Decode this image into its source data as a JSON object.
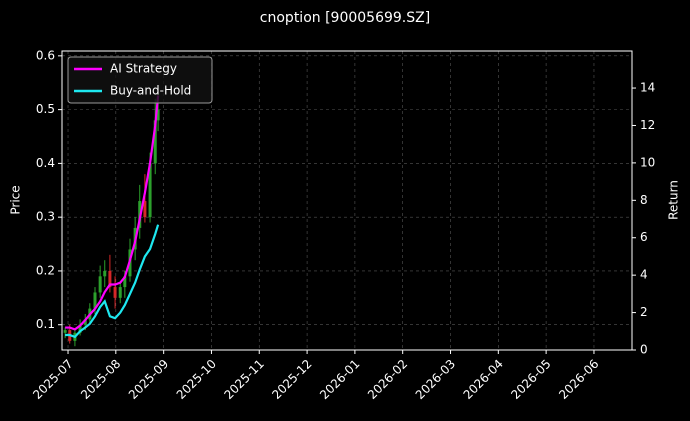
{
  "chart_data": {
    "type": "candlestick",
    "title": "cnoption [90005699.SZ]",
    "ylabel": "Price",
    "y2label": "Return",
    "x": [
      2025.495,
      2025.503,
      2025.512,
      2025.521,
      2025.53,
      2025.538,
      2025.547,
      2025.556,
      2025.564,
      2025.573,
      2025.582,
      2025.591,
      2025.599,
      2025.608,
      2025.617,
      2025.625,
      2025.634,
      2025.643,
      2025.652,
      2025.657
    ],
    "ohlc": {
      "up_color": "#2ca02c",
      "down_color": "#d62728",
      "open": [
        0.085,
        0.09,
        0.07,
        0.085,
        0.1,
        0.11,
        0.13,
        0.16,
        0.19,
        0.2,
        0.17,
        0.15,
        0.17,
        0.19,
        0.24,
        0.28,
        0.33,
        0.3,
        0.4,
        0.48
      ],
      "high": [
        0.095,
        0.1,
        0.09,
        0.11,
        0.12,
        0.14,
        0.17,
        0.21,
        0.22,
        0.23,
        0.19,
        0.18,
        0.2,
        0.26,
        0.3,
        0.36,
        0.38,
        0.42,
        0.52,
        0.53
      ],
      "low": [
        0.075,
        0.065,
        0.06,
        0.08,
        0.09,
        0.1,
        0.12,
        0.15,
        0.17,
        0.16,
        0.13,
        0.14,
        0.15,
        0.18,
        0.22,
        0.26,
        0.29,
        0.29,
        0.38,
        0.46
      ],
      "close": [
        0.09,
        0.07,
        0.085,
        0.1,
        0.11,
        0.13,
        0.16,
        0.19,
        0.2,
        0.17,
        0.15,
        0.17,
        0.19,
        0.24,
        0.28,
        0.33,
        0.3,
        0.4,
        0.48,
        0.5
      ]
    },
    "series": [
      {
        "name": "AI Strategy",
        "color": "#ff00ff",
        "axis": "y2",
        "values": [
          1.2,
          1.2,
          1.1,
          1.3,
          1.6,
          1.9,
          2.2,
          2.6,
          3.1,
          3.5,
          3.5,
          3.6,
          3.9,
          4.8,
          5.8,
          7.0,
          8.4,
          10.0,
          12.0,
          13.6
        ]
      },
      {
        "name": "Buy-and-Hold",
        "color": "#1ee8f0",
        "axis": "y2",
        "values": [
          0.8,
          0.8,
          0.7,
          1.0,
          1.2,
          1.4,
          1.8,
          2.3,
          2.6,
          1.8,
          1.7,
          2.0,
          2.4,
          3.0,
          3.6,
          4.3,
          5.0,
          5.4,
          6.2,
          6.7
        ]
      }
    ],
    "xlim": [
      2025.4895,
      2026.483
    ],
    "xticks": [
      {
        "value": 2025.5,
        "label": "2025-07"
      },
      {
        "value": 2025.5833,
        "label": "2025-08"
      },
      {
        "value": 2025.6667,
        "label": "2025-09"
      },
      {
        "value": 2025.75,
        "label": "2025-10"
      },
      {
        "value": 2025.8333,
        "label": "2025-11"
      },
      {
        "value": 2025.9167,
        "label": "2025-12"
      },
      {
        "value": 2026.0,
        "label": "2026-01"
      },
      {
        "value": 2026.0833,
        "label": "2026-02"
      },
      {
        "value": 2026.1667,
        "label": "2026-03"
      },
      {
        "value": 2026.25,
        "label": "2026-04"
      },
      {
        "value": 2026.3333,
        "label": "2026-05"
      },
      {
        "value": 2026.4167,
        "label": "2026-06"
      }
    ],
    "ylim": [
      0.053,
      0.609
    ],
    "yticks": [
      0.1,
      0.2,
      0.3,
      0.4,
      0.5,
      0.6
    ],
    "y2lim": [
      0,
      15.98
    ],
    "y2ticks": [
      0,
      2,
      4,
      6,
      8,
      10,
      12,
      14
    ],
    "grid": true,
    "legend": "upper-left"
  }
}
